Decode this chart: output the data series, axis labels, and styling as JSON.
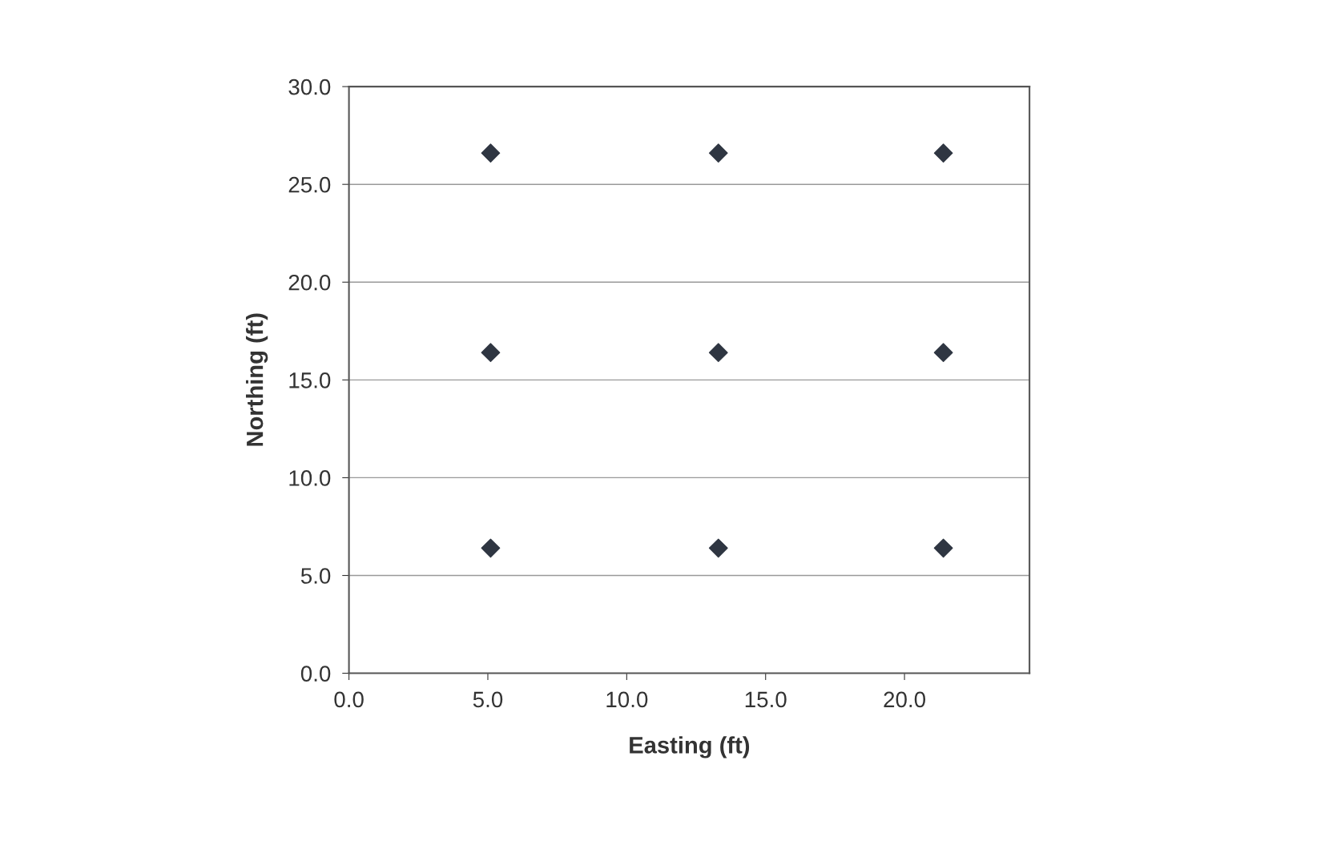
{
  "chart_data": {
    "type": "scatter",
    "xlabel": "Easting (ft)",
    "ylabel": "Northing (ft)",
    "series": [
      {
        "color": "#2f3642",
        "x": [
          5.1,
          13.3,
          21.4,
          5.1,
          13.3,
          21.4,
          5.1,
          13.3,
          21.4
        ],
        "values": [
          26.6,
          26.6,
          26.6,
          16.4,
          16.4,
          16.4,
          6.4,
          6.4,
          6.4
        ]
      }
    ],
    "xlim": [
      0,
      24.5
    ],
    "xticks": [
      {
        "value": 0,
        "label": "0.0"
      },
      {
        "value": 5,
        "label": "5.0"
      },
      {
        "value": 10,
        "label": "10.0"
      },
      {
        "value": 15,
        "label": "15.0"
      },
      {
        "value": 20,
        "label": "20.0"
      }
    ],
    "ylim": [
      0,
      30
    ],
    "yticks": [
      {
        "value": 0,
        "label": "0.0"
      },
      {
        "value": 5,
        "label": "5.0"
      },
      {
        "value": 10,
        "label": "10.0"
      },
      {
        "value": 15,
        "label": "15.0"
      },
      {
        "value": 20,
        "label": "20.0"
      },
      {
        "value": 25,
        "label": "25.0"
      },
      {
        "value": 30,
        "label": "30.0"
      }
    ],
    "grid": "y",
    "marker": "diamond"
  }
}
